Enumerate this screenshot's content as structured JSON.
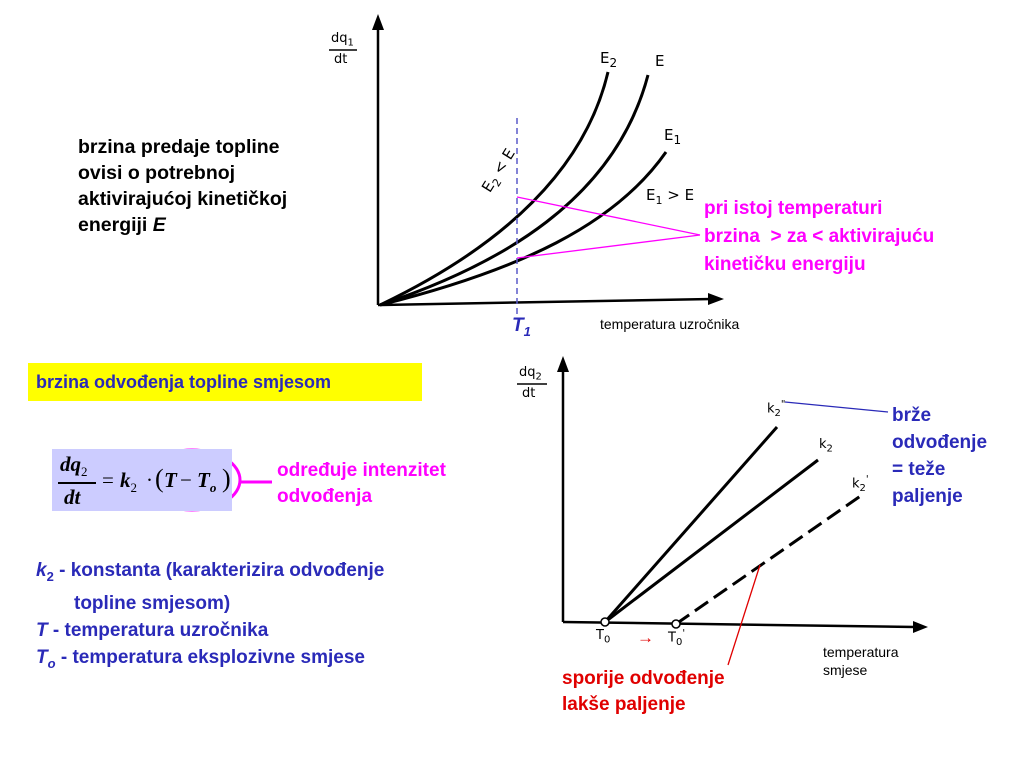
{
  "top_graph": {
    "y_label_num": "dq",
    "y_label_sub": "1",
    "y_label_den": "dt",
    "curve_e2": "E",
    "curve_e2_sub": "2",
    "curve_e": "E",
    "curve_e1": "E",
    "curve_e1_sub": "1",
    "e2_lt_e": "E",
    "e2_lt_e_sub": "2",
    "e2_lt_e_rest": " < E",
    "e1_gt_e": "E",
    "e1_gt_e_sub": "1",
    "e1_gt_e_rest": " > E",
    "t1_label": "T",
    "t1_sub": "1",
    "x_label": "temperatura uzročnika"
  },
  "left_text": {
    "line1": "brzina predaje topline",
    "line2": "ovisi o potrebnoj",
    "line3": "aktivirajućoj kinetičkoj",
    "line4_prefix": "energiji ",
    "line4_var": "E"
  },
  "magenta_note": {
    "line1": "pri istoj temperaturi",
    "line2": "brzina  > za < aktivirajuću",
    "line3": "kinetičku energiju"
  },
  "yellow_title": "brzina odvođenja topline smjesom",
  "formula": {
    "num": "dq",
    "num_sub": "2",
    "den": "dt",
    "eq": "=",
    "k": "k",
    "k_sub": "2",
    "dot": "·",
    "lparen": "(",
    "T": "T",
    "minus": "−",
    "To": "T",
    "To_sub": "o",
    "rparen": ")"
  },
  "formula_note": {
    "line1": "određuje intenzitet",
    "line2": "odvođenja"
  },
  "definitions": [
    {
      "sym": "k",
      "sub": "2",
      "text": " - konstanta (karakterizira odvođenje"
    },
    {
      "sym": "",
      "sub": "",
      "text": "topline smjesom)"
    },
    {
      "sym": "T",
      "sub": "",
      "text": " - temperatura uzročnika"
    },
    {
      "sym": "T",
      "sub": "o",
      "text": " - temperatura eksplozivne smjese"
    }
  ],
  "bottom_graph": {
    "y_label_num": "dq",
    "y_label_sub": "2",
    "y_label_den": "dt",
    "k2_dd": "k",
    "k2_dd_sub": "2",
    "k2_dd_sup": "\"",
    "k2": "k",
    "k2_sub": "2",
    "k2_d": "k",
    "k2_d_sub": "2",
    "k2_d_sup": "'",
    "t0": "T",
    "t0_sub": "0",
    "t0p": "T",
    "t0p_sub": "0",
    "t0p_sup": "'",
    "arrow": "→",
    "x_label_line1": "temperatura",
    "x_label_line2": "smjese"
  },
  "blue_note": {
    "line1": "brže",
    "line2": "odvođenje",
    "line3": "= teže",
    "line4": "paljenje"
  },
  "red_note": {
    "line1": "sporije odvođenje",
    "line2": "lakše paljenje"
  },
  "colors": {
    "magenta": "#ff00ff",
    "blue": "#2a2ab8",
    "red": "#e00000",
    "yellow": "#ffff00",
    "formula_bg": "#ccccff"
  }
}
